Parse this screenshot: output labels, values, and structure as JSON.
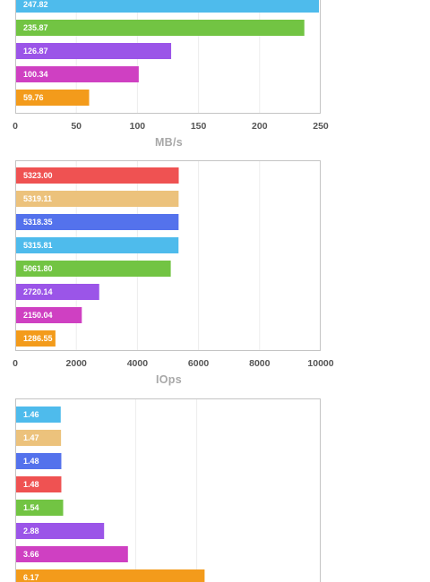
{
  "chart_data": [
    {
      "type": "bar",
      "orientation": "horizontal",
      "xlabel": "MB/s",
      "xlim": [
        0,
        250
      ],
      "xticks": [
        0,
        50,
        100,
        150,
        200,
        250
      ],
      "grid": true,
      "bars": [
        {
          "label": "247.82",
          "value": 247.82,
          "color": "#4ebbec"
        },
        {
          "label": "235.87",
          "value": 235.87,
          "color": "#72c443"
        },
        {
          "label": "126.87",
          "value": 126.87,
          "color": "#9b55e8"
        },
        {
          "label": "100.34",
          "value": 100.34,
          "color": "#cf40c2"
        },
        {
          "label": "59.76",
          "value": 59.76,
          "color": "#f39b1b"
        }
      ]
    },
    {
      "type": "bar",
      "orientation": "horizontal",
      "xlabel": "IOps",
      "xlim": [
        0,
        10000
      ],
      "xticks": [
        0,
        2000,
        4000,
        6000,
        8000,
        10000
      ],
      "grid": true,
      "bars": [
        {
          "label": "5323.00",
          "value": 5323.0,
          "color": "#ef5252"
        },
        {
          "label": "5319.11",
          "value": 5319.11,
          "color": "#ecc27c"
        },
        {
          "label": "5318.35",
          "value": 5318.35,
          "color": "#5472ec"
        },
        {
          "label": "5315.81",
          "value": 5315.81,
          "color": "#4ebbec"
        },
        {
          "label": "5061.80",
          "value": 5061.8,
          "color": "#72c443"
        },
        {
          "label": "2720.14",
          "value": 2720.14,
          "color": "#9b55e8"
        },
        {
          "label": "2150.04",
          "value": 2150.04,
          "color": "#cf40c2"
        },
        {
          "label": "1286.55",
          "value": 1286.55,
          "color": "#f39b1b"
        }
      ]
    },
    {
      "type": "bar",
      "orientation": "horizontal",
      "xlabel": "",
      "xlim": [
        0,
        10
      ],
      "grid": true,
      "bars": [
        {
          "label": "1.46",
          "value": 1.46,
          "color": "#4ebbec"
        },
        {
          "label": "1.47",
          "value": 1.47,
          "color": "#ecc27c"
        },
        {
          "label": "1.48",
          "value": 1.48,
          "color": "#5472ec"
        },
        {
          "label": "1.48",
          "value": 1.48,
          "color": "#ef5252"
        },
        {
          "label": "1.54",
          "value": 1.54,
          "color": "#72c443"
        },
        {
          "label": "2.88",
          "value": 2.88,
          "color": "#9b55e8"
        },
        {
          "label": "3.66",
          "value": 3.66,
          "color": "#cf40c2"
        },
        {
          "label": "6.17",
          "value": 6.17,
          "color": "#f39b1b"
        }
      ]
    }
  ]
}
